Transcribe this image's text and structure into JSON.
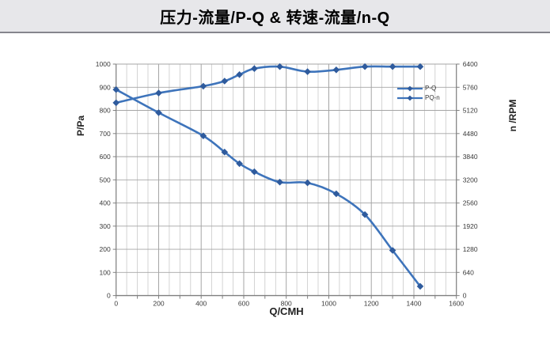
{
  "title": "压力-流量/P-Q &  转速-流量/n-Q",
  "chart_data": {
    "type": "line",
    "x": [
      0,
      200,
      410,
      510,
      580,
      650,
      770,
      900,
      1035,
      1170,
      1300,
      1430
    ],
    "series": [
      {
        "name": "P-Q",
        "axis": "left",
        "values": [
          890,
          790,
          690,
          620,
          570,
          535,
          490,
          487,
          440,
          350,
          195,
          40
        ]
      },
      {
        "name": "PQ-n",
        "axis": "right",
        "values": [
          5330,
          5600,
          5790,
          5930,
          6110,
          6275,
          6330,
          6190,
          6240,
          6330,
          6330,
          6330
        ]
      }
    ],
    "xlabel": "Q/CMH",
    "ylabel_left": "P/Pa",
    "ylabel_right": "n /RPM",
    "xlim": [
      0,
      1600
    ],
    "xtick_step": 200,
    "x_minor_step": 50,
    "ylim_left": [
      0,
      1000
    ],
    "ytick_step_left": 100,
    "ylim_right": [
      0,
      6400
    ],
    "ytick_step_right": 640,
    "grid": true,
    "legend_position": "inside-right",
    "colors": {
      "line": "#3e74bb",
      "marker": "#2f5b9d",
      "grid_minor": "#c9c9c9",
      "grid_major": "#a5a5a5",
      "axis": "#7f7f7f",
      "tick_text": "#3a3a3a"
    }
  }
}
